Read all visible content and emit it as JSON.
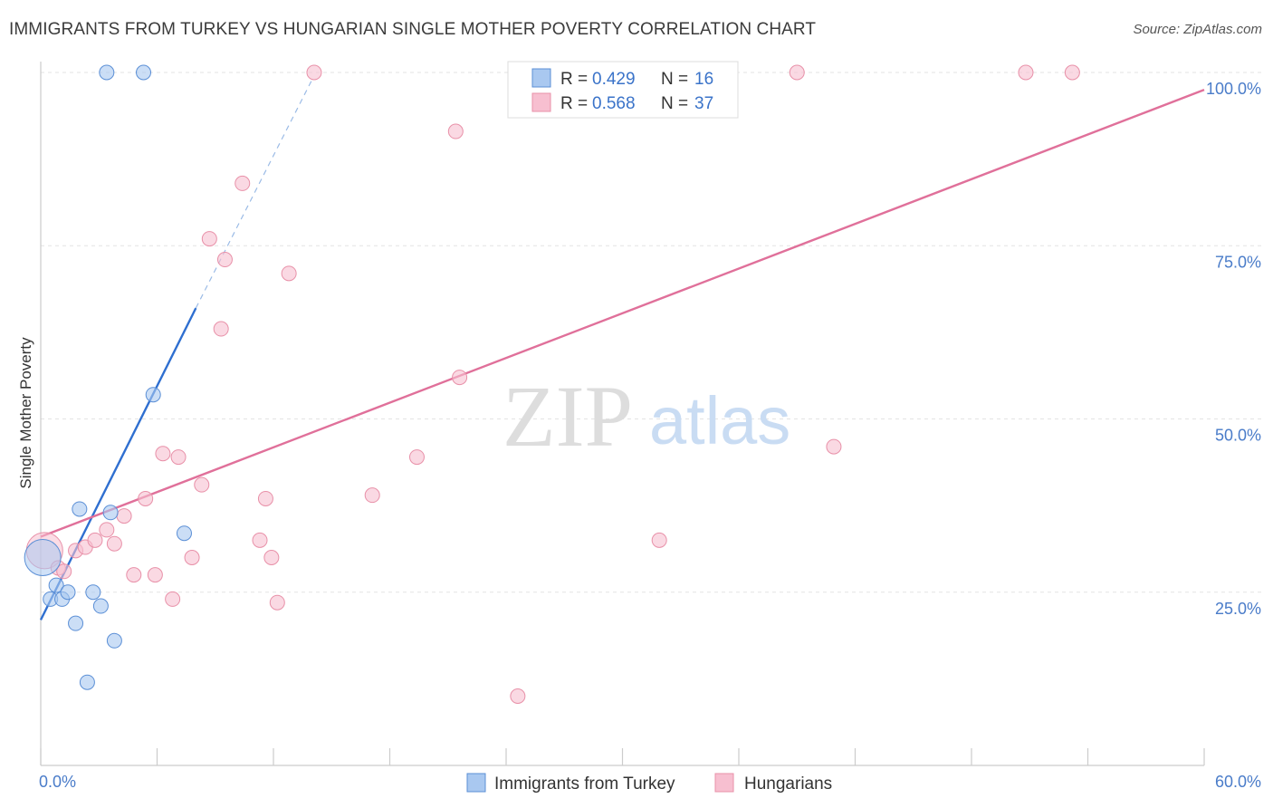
{
  "title": "IMMIGRANTS FROM TURKEY VS HUNGARIAN SINGLE MOTHER POVERTY CORRELATION CHART",
  "source": "Source: ZipAtlas.com",
  "watermark": {
    "zip": "ZIP",
    "atlas": "atlas"
  },
  "legend": {
    "r_label": "R =",
    "n_label": "N =",
    "entries": [
      {
        "r": "0.429",
        "n": "16",
        "color": "#a9c8f0"
      },
      {
        "r": "0.568",
        "n": "37",
        "color": "#f7bfd0"
      }
    ]
  },
  "chart_data": {
    "type": "scatter",
    "title": "IMMIGRANTS FROM TURKEY VS HUNGARIAN SINGLE MOTHER POVERTY CORRELATION CHART",
    "xlabel": "",
    "ylabel": "Single Mother Poverty",
    "xlim": [
      0,
      60
    ],
    "ylim": [
      0,
      100
    ],
    "x_tick_labels": [
      "0.0%",
      "60.0%"
    ],
    "y_ticks": [
      25,
      50,
      75,
      100
    ],
    "y_tick_labels": [
      "25.0%",
      "50.0%",
      "75.0%",
      "100.0%"
    ],
    "grid": true,
    "series": [
      {
        "name": "Immigrants from Turkey",
        "color": "#a9c8f0",
        "stroke": "#5b8fd6",
        "trend_color": "#2f6fd0",
        "trend": {
          "x0": 0,
          "y0": 21,
          "x1": 8.0,
          "y1": 66,
          "dash_x1": 14.0,
          "dash_y1": 99
        },
        "points": [
          {
            "x": 0.1,
            "y": 30,
            "big": true
          },
          {
            "x": 0.5,
            "y": 24
          },
          {
            "x": 0.8,
            "y": 26
          },
          {
            "x": 1.1,
            "y": 24
          },
          {
            "x": 1.4,
            "y": 25
          },
          {
            "x": 1.8,
            "y": 20.5
          },
          {
            "x": 2.0,
            "y": 37
          },
          {
            "x": 2.4,
            "y": 12
          },
          {
            "x": 2.7,
            "y": 25
          },
          {
            "x": 3.1,
            "y": 23
          },
          {
            "x": 3.6,
            "y": 36.5
          },
          {
            "x": 3.8,
            "y": 18
          },
          {
            "x": 3.4,
            "y": 100
          },
          {
            "x": 5.3,
            "y": 100
          },
          {
            "x": 5.8,
            "y": 53.5
          },
          {
            "x": 7.4,
            "y": 33.5
          }
        ]
      },
      {
        "name": "Hungarians",
        "color": "#f7bfd0",
        "stroke": "#e890a8",
        "trend_color": "#e0709a",
        "trend": {
          "x0": 0,
          "y0": 33,
          "x1": 60,
          "y1": 97.5
        },
        "points": [
          {
            "x": 0.2,
            "y": 31,
            "big": true
          },
          {
            "x": 0.9,
            "y": 28.5
          },
          {
            "x": 1.2,
            "y": 28
          },
          {
            "x": 1.8,
            "y": 31
          },
          {
            "x": 2.3,
            "y": 31.5
          },
          {
            "x": 2.8,
            "y": 32.5
          },
          {
            "x": 3.4,
            "y": 34
          },
          {
            "x": 3.8,
            "y": 32
          },
          {
            "x": 4.3,
            "y": 36
          },
          {
            "x": 4.8,
            "y": 27.5
          },
          {
            "x": 5.4,
            "y": 38.5
          },
          {
            "x": 5.9,
            "y": 27.5
          },
          {
            "x": 6.3,
            "y": 45
          },
          {
            "x": 6.8,
            "y": 24
          },
          {
            "x": 7.1,
            "y": 44.5
          },
          {
            "x": 7.8,
            "y": 30
          },
          {
            "x": 8.3,
            "y": 40.5
          },
          {
            "x": 8.7,
            "y": 76
          },
          {
            "x": 9.5,
            "y": 73
          },
          {
            "x": 9.3,
            "y": 63
          },
          {
            "x": 10.4,
            "y": 84
          },
          {
            "x": 11.3,
            "y": 32.5
          },
          {
            "x": 11.6,
            "y": 38.5
          },
          {
            "x": 11.9,
            "y": 30
          },
          {
            "x": 12.2,
            "y": 23.5
          },
          {
            "x": 12.8,
            "y": 71
          },
          {
            "x": 14.1,
            "y": 100
          },
          {
            "x": 17.1,
            "y": 39
          },
          {
            "x": 19.4,
            "y": 44.5
          },
          {
            "x": 21.4,
            "y": 91.5
          },
          {
            "x": 21.6,
            "y": 56
          },
          {
            "x": 24.6,
            "y": 10
          },
          {
            "x": 31.9,
            "y": 32.5
          },
          {
            "x": 39.0,
            "y": 100
          },
          {
            "x": 40.9,
            "y": 46
          },
          {
            "x": 50.8,
            "y": 100
          },
          {
            "x": 53.2,
            "y": 100
          }
        ]
      }
    ]
  }
}
